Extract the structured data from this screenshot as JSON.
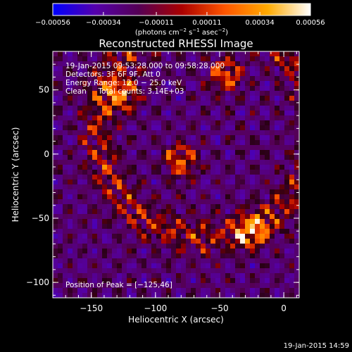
{
  "chart_data": {
    "type": "heatmap",
    "title": "Reconstructed RHESSI Image",
    "xlabel": "Heliocentric X (arcsec)",
    "ylabel": "Heliocentric Y (arcsec)",
    "xlim": [
      -180,
      12
    ],
    "ylim": [
      -112,
      80
    ],
    "x_ticks": [
      -150,
      -100,
      -50,
      0
    ],
    "x_tick_labels": [
      "−150",
      "−100",
      "−50",
      "0"
    ],
    "y_ticks": [
      -100,
      -50,
      0,
      50
    ],
    "y_tick_labels": [
      "−100",
      "−50",
      "0",
      "50"
    ],
    "colorbar": {
      "range": [
        -0.00056,
        0.00056
      ],
      "ticks": [
        -0.00056,
        -0.00034,
        -0.00011,
        0.00011,
        0.00034,
        0.00056
      ],
      "tick_labels": [
        "−0.00056",
        "−0.00034",
        "−0.00011",
        "0.00011",
        "0.00034",
        "0.00056"
      ],
      "unit_label_parts": [
        "(photons cm",
        "−2",
        " s",
        "−1",
        " asec",
        "−2",
        ")"
      ],
      "colors": [
        "#0000ff",
        "#5500aa",
        "#550055",
        "#aa0000",
        "#ff5500",
        "#ffaa00",
        "#ffffff"
      ]
    },
    "info_lines": [
      "19-Jan-2015 09:53:28.000 to 09:58:28.000",
      "Detectors: 3F 6F 9F, Att 0",
      "Energy Range: 12.0 − 25.0 keV",
      "Clean     Total counts: 3.14E+03"
    ],
    "peak_label": "Position of Peak = [−125,46]",
    "peak": {
      "x": -125,
      "y": 46
    },
    "sources": [
      {
        "x": -125,
        "y": 46
      },
      {
        "x": -45,
        "y": 62
      },
      {
        "x": -80,
        "y": -5
      },
      {
        "x": -25,
        "y": -60
      }
    ]
  },
  "footer": {
    "timestamp": "19-Jan-2015 14:59"
  }
}
